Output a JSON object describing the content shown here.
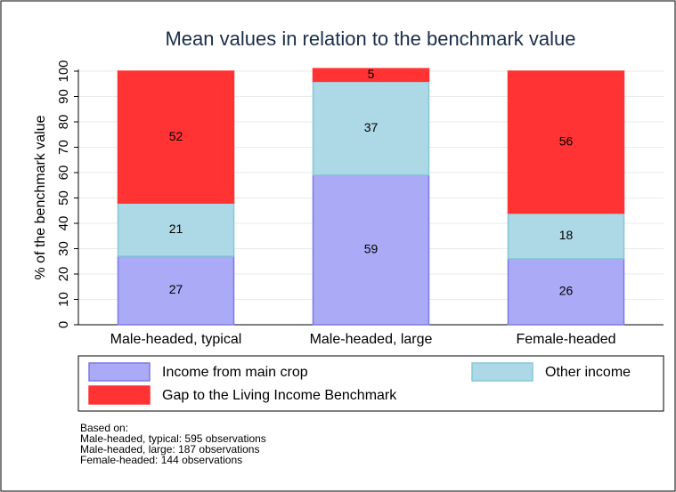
{
  "chart_data": {
    "type": "stacked_bar",
    "title": "Mean values in relation to the benchmark value",
    "ylabel": "% of the benchmark value",
    "categories": [
      "Male-headed, typical",
      "Male-headed, large",
      "Female-headed"
    ],
    "series": [
      {
        "name": "Income from main crop",
        "color": "#aaaaf6",
        "values": [
          27,
          59,
          26
        ]
      },
      {
        "name": "Other income",
        "color": "#add8e6",
        "values": [
          21,
          37,
          18
        ]
      },
      {
        "name": "Gap to the Living Income Benchmark",
        "color": "#ff3333",
        "values": [
          52,
          5,
          56
        ]
      }
    ],
    "ylim": [
      0,
      100
    ],
    "yticks": [
      0,
      10,
      20,
      30,
      40,
      50,
      60,
      70,
      80,
      90,
      100
    ],
    "grid": true,
    "notes": [
      "Based on:",
      "Male-headed, typical: 595 observations",
      "Male-headed, large: 187 observations",
      "Female-headed: 144 observations"
    ]
  }
}
